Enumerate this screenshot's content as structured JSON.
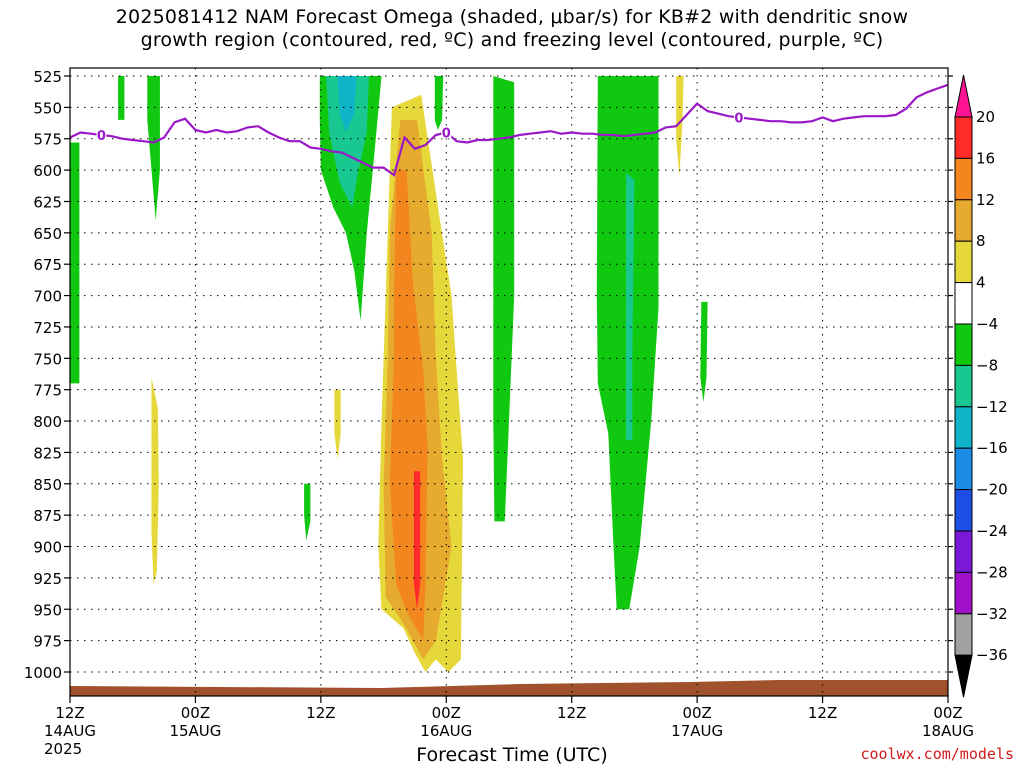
{
  "title": {
    "line1": "2025081412 NAM Forecast Omega (shaded, μbar/s) for KB#2 with dendritic snow",
    "line2": "growth region (contoured, red, ºC) and freezing level (contoured, purple, ºC)"
  },
  "credit": "coolwx.com/models",
  "xlabel": "Forecast Time (UTC)",
  "year_label": "2025",
  "chart_data": {
    "type": "heatmap",
    "title": "2025081412 NAM Forecast Omega (shaded, μbar/s) for KB#2 with dendritic snow growth region (contoured, red, ºC) and freezing level (contoured, purple, ºC)",
    "xlabel": "Forecast Time (UTC)",
    "ylabel": "",
    "y_axis": {
      "units": "mb",
      "reversed": true,
      "range": [
        1000,
        525
      ],
      "ticks": [
        525,
        550,
        575,
        600,
        625,
        650,
        675,
        700,
        725,
        750,
        775,
        800,
        825,
        850,
        875,
        900,
        925,
        950,
        975,
        1000
      ]
    },
    "x_axis": {
      "units": "hours",
      "range": [
        0,
        84
      ],
      "ticks": [
        {
          "hour": 0,
          "line1": "12Z",
          "line2": "14AUG"
        },
        {
          "hour": 12,
          "line1": "00Z",
          "line2": "15AUG"
        },
        {
          "hour": 24,
          "line1": "12Z",
          "line2": ""
        },
        {
          "hour": 36,
          "line1": "00Z",
          "line2": "16AUG"
        },
        {
          "hour": 48,
          "line1": "12Z",
          "line2": ""
        },
        {
          "hour": 60,
          "line1": "00Z",
          "line2": "17AUG"
        },
        {
          "hour": 72,
          "line1": "12Z",
          "line2": ""
        },
        {
          "hour": 84,
          "line1": "00Z",
          "line2": "18AUG"
        }
      ]
    },
    "grid": true,
    "colorbar": {
      "placement": "right",
      "labels": [
        "20",
        "16",
        "12",
        "8",
        "4",
        "−4",
        "−8",
        "−12",
        "−16",
        "−20",
        "−24",
        "−28",
        "−32",
        "−36"
      ],
      "colors": [
        "#ff1493",
        "#ff2b2b",
        "#f4861f",
        "#e6aa2e",
        "#e6d73a",
        "#ffffff",
        "#10c810",
        "#18c890",
        "#10b4c8",
        "#1a8ce6",
        "#1e4ee6",
        "#7a18d8",
        "#a010c8",
        "#a0a0a0",
        "#000000"
      ]
    },
    "omega_regions": [
      {
        "level": "-4",
        "color": "#10c810",
        "polygon": [
          [
            0.0,
            578
          ],
          [
            0.9,
            578
          ],
          [
            0.9,
            770
          ],
          [
            0.0,
            770
          ]
        ]
      },
      {
        "level": "-4",
        "color": "#10c810",
        "polygon": [
          [
            4.6,
            525
          ],
          [
            5.2,
            525
          ],
          [
            5.2,
            560
          ],
          [
            4.6,
            560
          ]
        ]
      },
      {
        "level": "-4",
        "color": "#10c810",
        "polygon": [
          [
            7.4,
            525
          ],
          [
            8.6,
            525
          ],
          [
            8.6,
            600
          ],
          [
            8.2,
            640
          ],
          [
            7.8,
            600
          ],
          [
            7.4,
            560
          ]
        ]
      },
      {
        "level": "-4",
        "color": "#10c810",
        "polygon": [
          [
            23.9,
            525
          ],
          [
            29.8,
            525
          ],
          [
            29.2,
            580
          ],
          [
            28.4,
            650
          ],
          [
            27.8,
            720
          ],
          [
            27.2,
            680
          ],
          [
            26.4,
            650
          ],
          [
            25.2,
            630
          ],
          [
            24.0,
            600
          ],
          [
            23.9,
            560
          ]
        ]
      },
      {
        "level": "-8",
        "color": "#18c890",
        "polygon": [
          [
            24.5,
            525
          ],
          [
            28.6,
            525
          ],
          [
            28.4,
            570
          ],
          [
            27.6,
            600
          ],
          [
            27.0,
            630
          ],
          [
            25.8,
            610
          ],
          [
            24.8,
            570
          ]
        ]
      },
      {
        "level": "-12",
        "color": "#10b4c8",
        "polygon": [
          [
            25.6,
            525
          ],
          [
            27.4,
            525
          ],
          [
            27.2,
            555
          ],
          [
            26.4,
            570
          ],
          [
            25.8,
            555
          ]
        ]
      },
      {
        "level": "-4",
        "color": "#10c810",
        "polygon": [
          [
            34.9,
            525
          ],
          [
            35.7,
            525
          ],
          [
            35.6,
            560
          ],
          [
            35.2,
            568
          ],
          [
            34.9,
            560
          ]
        ]
      },
      {
        "level": "-4",
        "color": "#10c810",
        "polygon": [
          [
            40.5,
            525
          ],
          [
            42.5,
            530
          ],
          [
            42.5,
            700
          ],
          [
            42.0,
            800
          ],
          [
            41.6,
            880
          ],
          [
            40.6,
            880
          ],
          [
            40.5,
            800
          ]
        ]
      },
      {
        "level": "-4",
        "color": "#10c810",
        "polygon": [
          [
            50.5,
            525
          ],
          [
            56.3,
            525
          ],
          [
            56.3,
            710
          ],
          [
            55.6,
            800
          ],
          [
            54.5,
            900
          ],
          [
            53.5,
            950
          ],
          [
            52.3,
            950
          ],
          [
            52.0,
            900
          ],
          [
            51.5,
            810
          ],
          [
            50.5,
            770
          ],
          [
            50.4,
            700
          ]
        ]
      },
      {
        "level": "-8",
        "color": "#18c890",
        "polygon": [
          [
            53.2,
            602
          ],
          [
            54.0,
            608
          ],
          [
            53.8,
            750
          ],
          [
            53.8,
            815
          ],
          [
            53.2,
            815
          ],
          [
            53.2,
            750
          ]
        ]
      },
      {
        "level": "-4",
        "color": "#10c810",
        "polygon": [
          [
            60.4,
            705
          ],
          [
            61.0,
            705
          ],
          [
            60.9,
            765
          ],
          [
            60.6,
            785
          ],
          [
            60.3,
            765
          ]
        ]
      },
      {
        "level": "-4",
        "color": "#10c810",
        "polygon": [
          [
            22.4,
            850
          ],
          [
            23.0,
            850
          ],
          [
            23.0,
            880
          ],
          [
            22.6,
            895
          ],
          [
            22.4,
            875
          ]
        ]
      }
    ],
    "omega_positive_regions": [
      {
        "level": "4",
        "color": "#e6d73a",
        "polygon": [
          [
            30.8,
            550
          ],
          [
            33.6,
            540
          ],
          [
            35.4,
            640
          ],
          [
            36.5,
            700
          ],
          [
            37.0,
            760
          ],
          [
            37.6,
            830
          ],
          [
            37.4,
            990
          ],
          [
            36.2,
            1000
          ],
          [
            35.0,
            990
          ],
          [
            34.0,
            1000
          ],
          [
            33.0,
            985
          ],
          [
            31.9,
            965
          ],
          [
            29.8,
            950
          ],
          [
            29.5,
            900
          ],
          [
            29.8,
            800
          ],
          [
            30.2,
            700
          ],
          [
            30.6,
            600
          ]
        ]
      },
      {
        "level": "8",
        "color": "#e6aa2e",
        "polygon": [
          [
            31.6,
            560
          ],
          [
            33.2,
            560
          ],
          [
            34.6,
            650
          ],
          [
            35.0,
            750
          ],
          [
            35.6,
            830
          ],
          [
            36.5,
            900
          ],
          [
            35.0,
            975
          ],
          [
            33.8,
            990
          ],
          [
            31.8,
            960
          ],
          [
            30.2,
            940
          ],
          [
            30.0,
            850
          ],
          [
            30.4,
            750
          ],
          [
            30.6,
            650
          ]
        ]
      },
      {
        "level": "12",
        "color": "#f4861f",
        "polygon": [
          [
            31.2,
            600
          ],
          [
            32.2,
            600
          ],
          [
            32.8,
            690
          ],
          [
            33.8,
            760
          ],
          [
            34.2,
            820
          ],
          [
            34.0,
            930
          ],
          [
            33.8,
            975
          ],
          [
            32.4,
            955
          ],
          [
            31.2,
            930
          ],
          [
            30.6,
            850
          ],
          [
            31.0,
            750
          ],
          [
            31.0,
            700
          ]
        ]
      },
      {
        "level": "16",
        "color": "#ff2b2b",
        "polygon": [
          [
            32.9,
            840
          ],
          [
            33.5,
            840
          ],
          [
            33.5,
            930
          ],
          [
            33.2,
            950
          ],
          [
            32.9,
            930
          ]
        ]
      },
      {
        "level": "4",
        "color": "#e6d73a",
        "polygon": [
          [
            25.3,
            775
          ],
          [
            25.9,
            775
          ],
          [
            25.9,
            810
          ],
          [
            25.6,
            830
          ],
          [
            25.3,
            810
          ]
        ]
      },
      {
        "level": "4",
        "color": "#e6d73a",
        "polygon": [
          [
            7.8,
            765
          ],
          [
            8.4,
            790
          ],
          [
            8.5,
            850
          ],
          [
            8.3,
            920
          ],
          [
            8.0,
            930
          ],
          [
            7.8,
            890
          ]
        ]
      },
      {
        "level": "4",
        "color": "#e6d73a",
        "polygon": [
          [
            58.0,
            525
          ],
          [
            58.7,
            525
          ],
          [
            58.6,
            560
          ],
          [
            58.3,
            605
          ],
          [
            58.0,
            575
          ]
        ]
      }
    ],
    "freezing_level": {
      "label": "0",
      "color": "#9a18c8",
      "x": [
        0,
        1,
        2,
        3,
        4,
        5,
        6,
        7,
        8,
        9,
        10,
        11,
        12,
        13,
        14,
        15,
        16,
        17,
        18,
        19,
        20,
        21,
        22,
        23,
        24,
        25,
        26,
        27,
        28,
        29,
        30,
        31,
        32,
        33,
        34,
        35,
        36,
        37,
        38,
        39,
        40,
        41,
        42,
        43,
        44,
        45,
        46,
        47,
        48,
        49,
        50,
        51,
        52,
        53,
        54,
        55,
        56,
        57,
        58,
        59,
        60,
        61,
        62,
        63,
        64,
        65,
        66,
        67,
        68,
        69,
        70,
        71,
        72,
        73,
        74,
        75,
        76,
        77,
        78,
        79,
        80,
        81,
        82,
        83,
        84
      ],
      "y": [
        574,
        570,
        571,
        572,
        573,
        575,
        576,
        577,
        578,
        574,
        562,
        559,
        568,
        570,
        568,
        570,
        569,
        566,
        565,
        570,
        574,
        577,
        577,
        582,
        583,
        585,
        586,
        590,
        594,
        598,
        598,
        604,
        574,
        583,
        580,
        572,
        570,
        577,
        578,
        576,
        576,
        575,
        574,
        572,
        571,
        570,
        569,
        571,
        570,
        571,
        571,
        572,
        572,
        573,
        572,
        571,
        570,
        566,
        565,
        556,
        547,
        553,
        555,
        557,
        558,
        559,
        560,
        561,
        561,
        562,
        562,
        561,
        558,
        561,
        559,
        558,
        557,
        557,
        557,
        556,
        551,
        542,
        538,
        535,
        532
      ],
      "labels_at_hours": [
        3,
        36,
        64
      ]
    }
  }
}
